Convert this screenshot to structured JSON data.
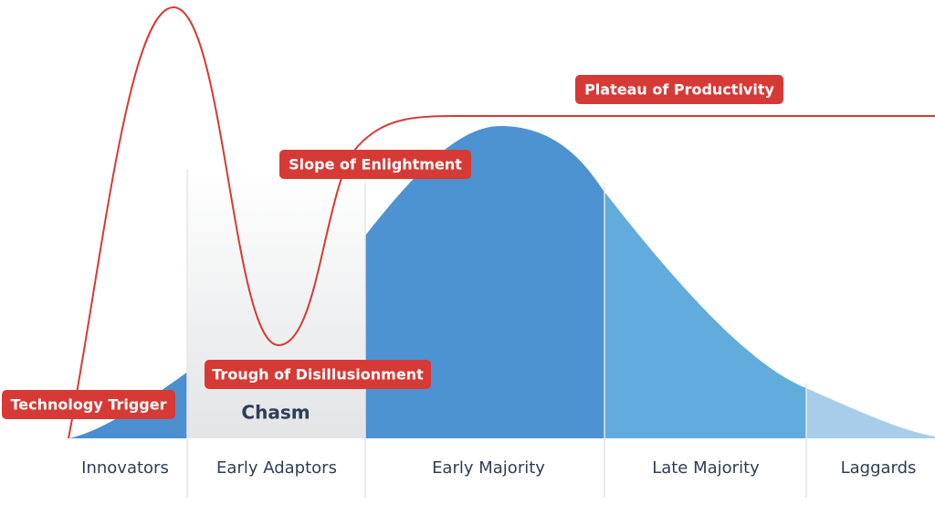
{
  "phases": [
    "Technology Trigger",
    "Trough of Disillusionment",
    "Slope of Enlightment",
    "Plateau of Productivity"
  ],
  "chasm": "Chasm",
  "segments": [
    "Innovators",
    "Early Adaptors",
    "Early Majority",
    "Late Majority",
    "Laggards"
  ]
}
